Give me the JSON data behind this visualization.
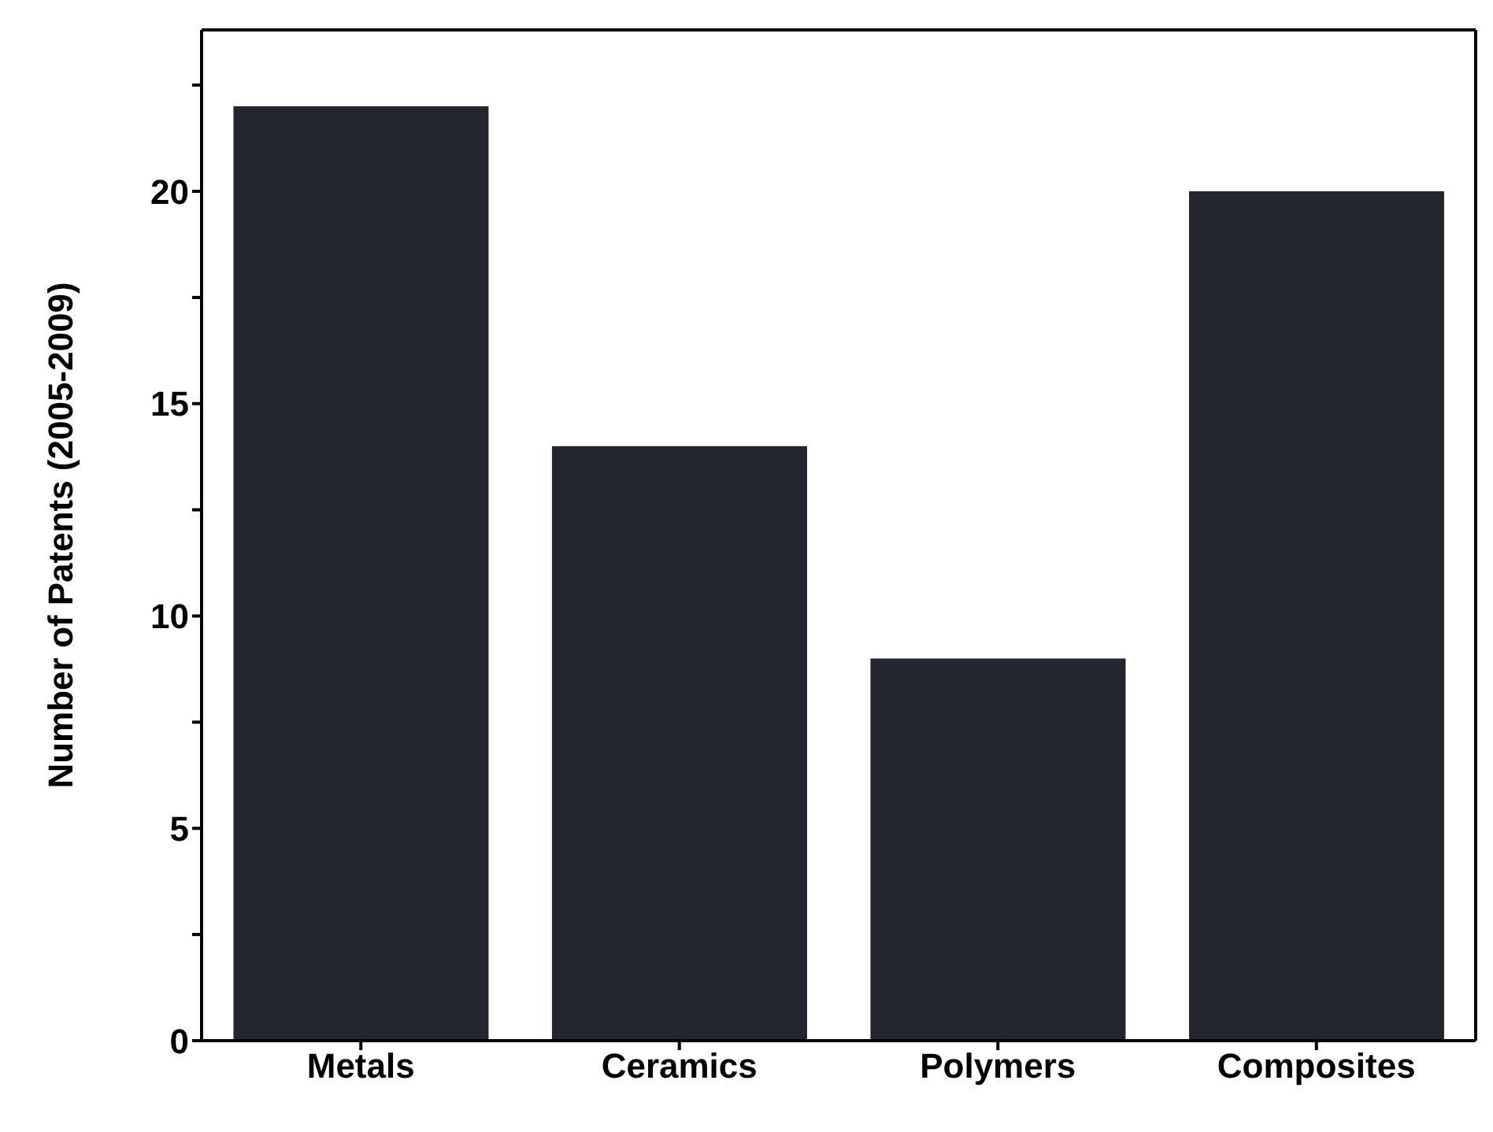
{
  "chart_data": {
    "type": "bar",
    "ylabel": "Number of Patents (2005-2009)",
    "categories": [
      "Metals",
      "Ceramics",
      "Polymers",
      "Composites"
    ],
    "values": [
      22,
      14,
      9,
      20
    ],
    "color": "#23262e",
    "ylim": [
      0,
      23.8
    ],
    "yticks": [
      0,
      {
        "value": 2.5,
        "label": null
      },
      5,
      {
        "value": 7.5,
        "label": null
      },
      10,
      {
        "value": 12.5,
        "label": null
      },
      15,
      {
        "value": 17.5,
        "label": null
      },
      20,
      {
        "value": 22.5,
        "label": null
      }
    ],
    "grid": false
  }
}
